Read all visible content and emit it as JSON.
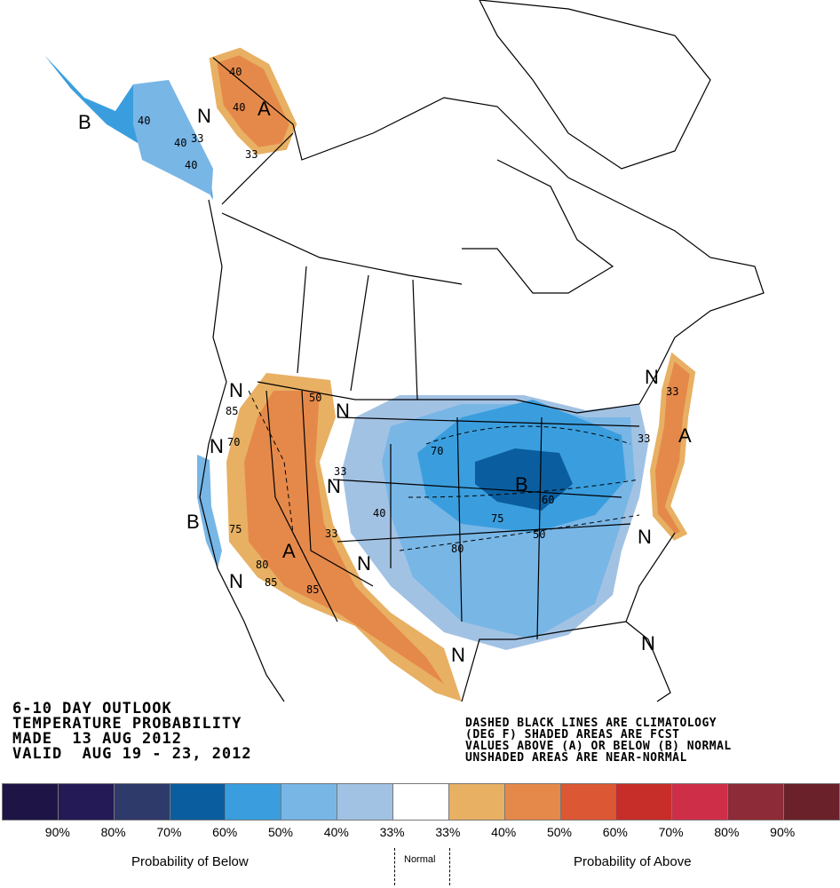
{
  "title": {
    "line1": "6-10 DAY OUTLOOK",
    "line2": "TEMPERATURE PROBABILITY",
    "line3": "MADE  13 AUG 2012",
    "line4": "VALID  AUG 19 - 23, 2012"
  },
  "note": {
    "line1": "DASHED BLACK LINES ARE CLIMATOLOGY",
    "line2": "(DEG F) SHADED AREAS ARE FCST",
    "line3": "VALUES ABOVE (A) OR BELOW (B) NORMAL",
    "line4": "UNSHADED AREAS ARE NEAR-NORMAL"
  },
  "legend": {
    "colors": [
      "#1e1446",
      "#241a56",
      "#2e3a6a",
      "#0a5ea0",
      "#3a9ede",
      "#78b6e6",
      "#a2c2e4",
      "#ffffff",
      "#e8b063",
      "#e5894a",
      "#dc5733",
      "#c72e2a",
      "#cf2e48",
      "#8e2b38",
      "#6a2129"
    ],
    "ticks": [
      "90%",
      "80%",
      "70%",
      "60%",
      "50%",
      "40%",
      "33%",
      "33%",
      "40%",
      "50%",
      "60%",
      "70%",
      "80%",
      "90%"
    ],
    "below_label": "Probability of Below",
    "normal_label": "Normal",
    "above_label": "Probability of Above"
  },
  "map_labels": {
    "alaska_b": "B",
    "alaska_n": "N",
    "yukon_a": "A",
    "nw_n": "N",
    "west_n": "N",
    "west_b": "B",
    "sw_n": "N",
    "rockies_n": "N",
    "plains_n": "N",
    "west_a": "A",
    "south_n": "N",
    "midwest_b": "B",
    "ne_n": "N",
    "east_a": "A",
    "se_n": "N",
    "fl_n": "N",
    "tx_n": "N",
    "c40a": "40",
    "c40b": "40",
    "c33a": "33",
    "c40c": "40",
    "c50a": "50",
    "c40d": "40",
    "c33b": "33",
    "c85a": "85",
    "c70a": "70",
    "c75a": "75",
    "c80a": "80",
    "c85b": "85",
    "c85c": "85",
    "c33c": "33",
    "c33d": "33",
    "c40e": "40",
    "c70b": "70",
    "c75b": "75",
    "c80b": "80",
    "c60": "60",
    "c50b": "50",
    "c33e": "33",
    "c33f": "33"
  }
}
